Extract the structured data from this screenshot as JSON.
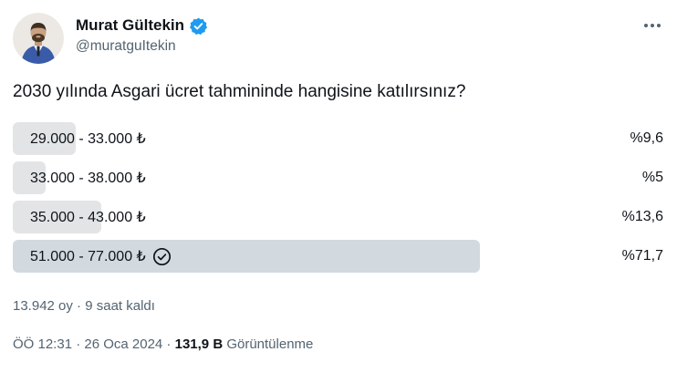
{
  "colors": {
    "accent": "#1d9bf0",
    "text": "#0f1419",
    "muted": "#536471",
    "bar": "#e2e4e6",
    "bar-selected": "#d2dae0",
    "background": "#ffffff"
  },
  "icons": {
    "more": "more-icon (three horizontal dots)",
    "verified": "verified-badge-icon (blue circle, white check)",
    "vote_check": "check-circle-icon (outlined circle with check, marks user's vote)"
  },
  "tweet": {
    "author": {
      "name": "Murat Gültekin",
      "handle": "@muratguItekin",
      "verified": true
    },
    "text": "2030 yılında Asgari ücret tahmininde hangisine katılırsınız?",
    "poll": {
      "type": "poll-results",
      "options": [
        {
          "label": "29.000 - 33.000 ₺",
          "percent": 9.6,
          "percent_label": "%9,6",
          "selected": false
        },
        {
          "label": "33.000 - 38.000 ₺",
          "percent": 5,
          "percent_label": "%5",
          "selected": false
        },
        {
          "label": "35.000 - 43.000 ₺",
          "percent": 13.6,
          "percent_label": "%13,6",
          "selected": false
        },
        {
          "label": "51.000 - 77.000 ₺",
          "percent": 71.7,
          "percent_label": "%71,7",
          "selected": true
        }
      ],
      "meta": "13.942 oy · 9 saat kaldı"
    },
    "footer": {
      "prefix": "ÖÖ 12:31 · 26 Oca 2024 · ",
      "views": "131,9 B",
      "suffix": " Görüntülenme"
    }
  }
}
